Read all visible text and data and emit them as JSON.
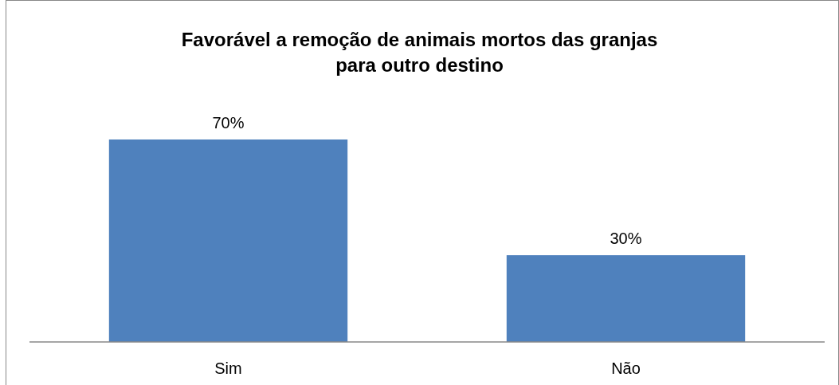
{
  "chart_data": {
    "type": "bar",
    "title": "Favorável a remoção de animais mortos das granjas\npara outro destino",
    "categories": [
      "Sim",
      "Não"
    ],
    "values": [
      70,
      30
    ],
    "value_labels": [
      "70%",
      "30%"
    ],
    "color": "#4f81bd"
  }
}
